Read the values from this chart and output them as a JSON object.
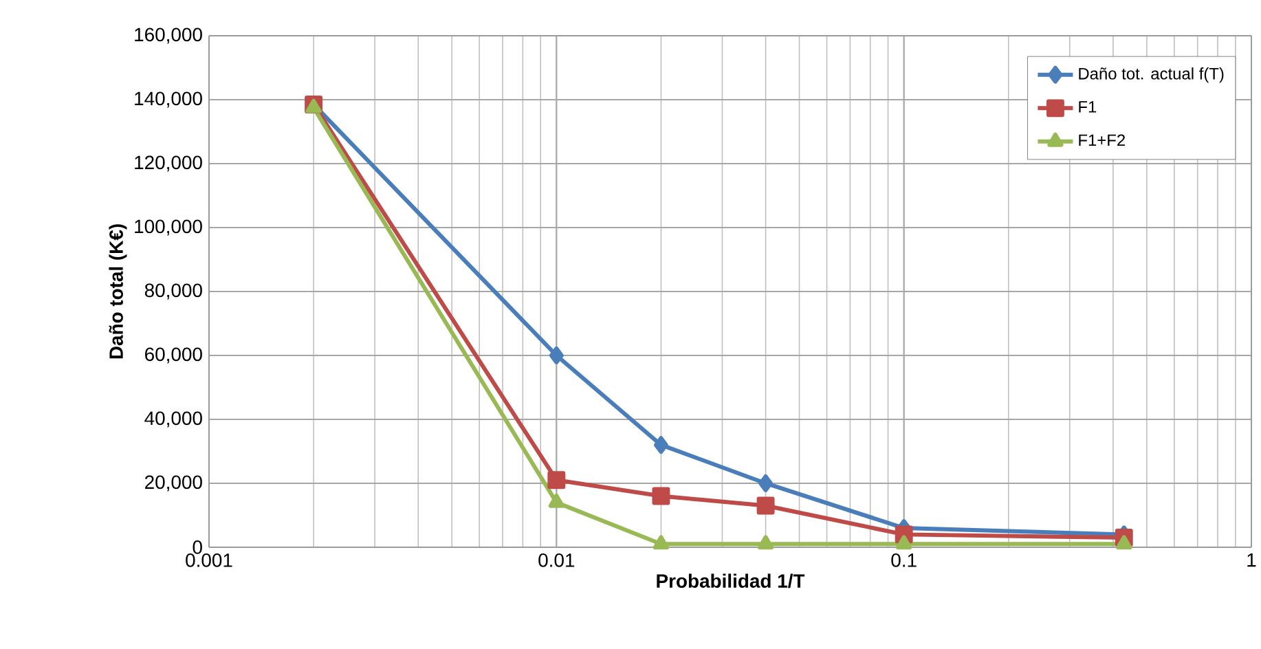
{
  "chart_data": {
    "type": "line",
    "xlabel": "Probabilidad  1/T",
    "ylabel": "Daño total (K€)",
    "log": "x",
    "grid": true,
    "legend": "top right",
    "line_style": "solid",
    "xlim": [
      0.001,
      1
    ],
    "xticks": [
      0.001,
      0.01,
      0.1,
      1
    ],
    "ylim": [
      0,
      160000
    ],
    "yticks": [
      {
        "value": 0,
        "label": "0"
      },
      {
        "value": 20000,
        "label": "20,000"
      },
      {
        "value": 40000,
        "label": "40,000"
      },
      {
        "value": 60000,
        "label": "60,000"
      },
      {
        "value": 80000,
        "label": "80,000"
      },
      {
        "value": 100000,
        "label": "100,000"
      },
      {
        "value": 120000,
        "label": "120,000"
      },
      {
        "value": 140000,
        "label": "140,000"
      },
      {
        "value": 160000,
        "label": "160,000"
      }
    ],
    "x": [
      0.002,
      0.01,
      0.02,
      0.04,
      0.1,
      0.43
    ],
    "series": [
      {
        "name": "Daño tot. actual f(T)",
        "color": "#4a7ebb",
        "marker": "diamond",
        "values": [
          138500,
          60000,
          32000,
          20000,
          6000,
          4000
        ]
      },
      {
        "name": "F1",
        "color": "#be4b48",
        "marker": "square",
        "values": [
          138500,
          21000,
          16000,
          13000,
          4000,
          3000
        ]
      },
      {
        "name": "F1+F2",
        "color": "#98b954",
        "marker": "triangle",
        "values": [
          137500,
          14000,
          1000,
          1000,
          1000,
          1000
        ]
      }
    ]
  }
}
